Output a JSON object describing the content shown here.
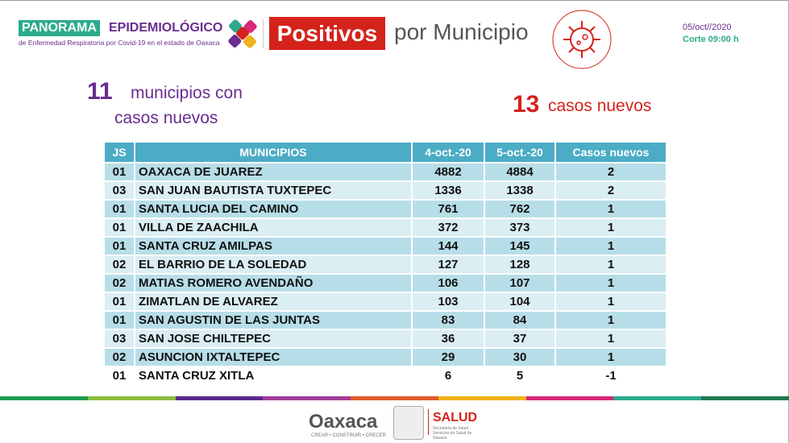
{
  "header": {
    "brand1": "PANORAMA",
    "brand2": "EPIDEMIOLÓGICO",
    "brand_sub": "de Enfermedad Respiratoria por Covid-19 en el estado de Oaxaca",
    "title1": "Positivos",
    "title2": "por Municipio",
    "date": "05/oct//2020",
    "corte": "Corte 09:00 h"
  },
  "summary": {
    "municipios_count": "11",
    "municipios_text1": "municipios con",
    "municipios_text2": "casos nuevos",
    "casos_count": "13",
    "casos_text": "casos nuevos"
  },
  "table": {
    "headers": [
      "JS",
      "MUNICIPIOS",
      "4-oct.-20",
      "5-oct.-20",
      "Casos nuevos"
    ],
    "rows": [
      [
        "01",
        "OAXACA DE JUAREZ",
        "4882",
        "4884",
        "2"
      ],
      [
        "03",
        "SAN JUAN BAUTISTA TUXTEPEC",
        "1336",
        "1338",
        "2"
      ],
      [
        "01",
        "SANTA LUCIA DEL CAMINO",
        "761",
        "762",
        "1"
      ],
      [
        "01",
        "VILLA DE ZAACHILA",
        "372",
        "373",
        "1"
      ],
      [
        "01",
        "SANTA CRUZ AMILPAS",
        "144",
        "145",
        "1"
      ],
      [
        "02",
        "EL BARRIO DE LA SOLEDAD",
        "127",
        "128",
        "1"
      ],
      [
        "02",
        "MATIAS ROMERO AVENDAÑO",
        "106",
        "107",
        "1"
      ],
      [
        "01",
        "ZIMATLAN DE ALVAREZ",
        "103",
        "104",
        "1"
      ],
      [
        "01",
        "SAN AGUSTIN DE LAS JUNTAS",
        "83",
        "84",
        "1"
      ],
      [
        "03",
        "SAN JOSE CHILTEPEC",
        "36",
        "37",
        "1"
      ],
      [
        "02",
        "ASUNCION IXTALTEPEC",
        "29",
        "30",
        "1"
      ],
      [
        "01",
        "SANTA CRUZ XITLA",
        "6",
        "5",
        "-1"
      ]
    ]
  },
  "footer": {
    "oaxaca": "Oaxaca",
    "oaxaca_sub": "CREAR • CONSTRUIR • CRECER",
    "salud": "SALUD",
    "salud_sub": "Secretaría de Salud · Servicios de Salud de Oaxaca"
  },
  "colors": {
    "stripes": [
      "#1f9a4e",
      "#8cbc3f",
      "#5c2a8c",
      "#a23d9a",
      "#e05a2b",
      "#f0b21b",
      "#d8297a",
      "#2bab8c",
      "#1f7a55"
    ]
  }
}
